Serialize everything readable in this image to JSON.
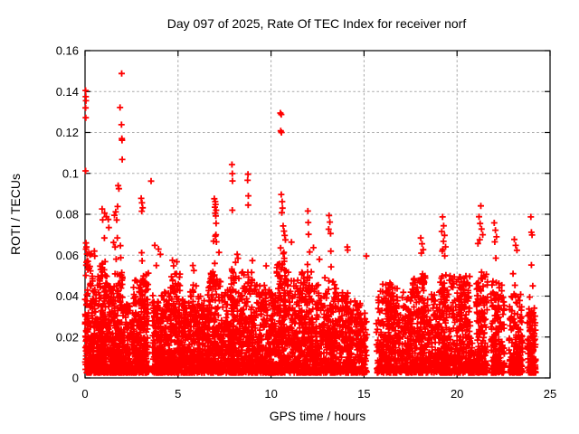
{
  "page": {
    "background": "#ffffff"
  },
  "chart_data": {
    "type": "scatter",
    "title": "Day 097 of 2025, Rate Of TEC Index for receiver norf",
    "xlabel": "GPS time / hours",
    "ylabel": "ROTI / TECUs",
    "xlim": [
      0,
      25
    ],
    "ylim": [
      0,
      0.16
    ],
    "xticks": {
      "values": [
        0,
        5,
        10,
        15,
        20,
        25
      ],
      "labels": [
        "0",
        "5",
        "10",
        "15",
        "20",
        "25"
      ]
    },
    "yticks": {
      "values": [
        0,
        0.02,
        0.04,
        0.06,
        0.08,
        0.1,
        0.12,
        0.14,
        0.16
      ],
      "labels": [
        "0",
        "0.02",
        "0.04",
        "0.06",
        "0.08",
        "0.1",
        "0.12",
        "0.14",
        "0.16"
      ]
    },
    "grid": true,
    "legend": "none",
    "marker": {
      "glyph": "plus",
      "color": "#ff0000",
      "size": 7
    },
    "grid_color": "#a9a9a9",
    "axis_color": "#000000",
    "series_name": "ROTI",
    "outlier_points": [
      [
        0.03,
        0.1405
      ],
      [
        0.04,
        0.1375
      ],
      [
        0.05,
        0.1355
      ],
      [
        0.03,
        0.132
      ],
      [
        0.04,
        0.1272
      ],
      [
        0.03,
        0.1012
      ],
      [
        0.05,
        0.066
      ],
      [
        0.08,
        0.064
      ],
      [
        0.5,
        0.062
      ],
      [
        0.52,
        0.0596
      ],
      [
        0.92,
        0.0826
      ],
      [
        1.05,
        0.0806
      ],
      [
        0.95,
        0.0773
      ],
      [
        1.15,
        0.0788
      ],
      [
        1.25,
        0.0775
      ],
      [
        1.28,
        0.0735
      ],
      [
        1.04,
        0.0684
      ],
      [
        1.53,
        0.0662
      ],
      [
        1.62,
        0.064
      ],
      [
        1.58,
        0.0795
      ],
      [
        1.65,
        0.0812
      ],
      [
        1.7,
        0.0772
      ],
      [
        1.75,
        0.0838
      ],
      [
        1.97,
        0.1488
      ],
      [
        1.88,
        0.1322
      ],
      [
        1.96,
        0.1238
      ],
      [
        1.98,
        0.117
      ],
      [
        1.99,
        0.1162
      ],
      [
        2.0,
        0.1068
      ],
      [
        1.78,
        0.094
      ],
      [
        1.82,
        0.0925
      ],
      [
        3.02,
        0.0878
      ],
      [
        3.06,
        0.0856
      ],
      [
        3.1,
        0.0832
      ],
      [
        3.05,
        0.0815
      ],
      [
        3.55,
        0.0962
      ],
      [
        3.75,
        0.0648
      ],
      [
        3.95,
        0.063
      ],
      [
        4.05,
        0.0604
      ],
      [
        4.7,
        0.0575
      ],
      [
        4.76,
        0.0548
      ],
      [
        5.1,
        0.0508
      ],
      [
        5.8,
        0.055
      ],
      [
        5.85,
        0.0525
      ],
      [
        6.95,
        0.0876
      ],
      [
        7.0,
        0.0862
      ],
      [
        7.02,
        0.0848
      ],
      [
        6.98,
        0.0835
      ],
      [
        7.05,
        0.082
      ],
      [
        7.0,
        0.0806
      ],
      [
        7.03,
        0.0792
      ],
      [
        7.05,
        0.0756
      ],
      [
        7.04,
        0.07
      ],
      [
        7.06,
        0.0665
      ],
      [
        7.9,
        0.1043
      ],
      [
        7.92,
        0.0999
      ],
      [
        7.93,
        0.0963
      ],
      [
        7.92,
        0.082
      ],
      [
        8.18,
        0.0604
      ],
      [
        8.22,
        0.0585
      ],
      [
        8.76,
        0.0996
      ],
      [
        8.74,
        0.0966
      ],
      [
        8.78,
        0.089
      ],
      [
        8.77,
        0.0845
      ],
      [
        10.5,
        0.1295
      ],
      [
        10.55,
        0.1288
      ],
      [
        10.52,
        0.1208
      ],
      [
        10.56,
        0.12
      ],
      [
        10.55,
        0.0897
      ],
      [
        10.6,
        0.0862
      ],
      [
        10.62,
        0.083
      ],
      [
        10.58,
        0.0808
      ],
      [
        10.65,
        0.0743
      ],
      [
        11.1,
        0.0664
      ],
      [
        11.98,
        0.0816
      ],
      [
        12.0,
        0.076
      ],
      [
        12.02,
        0.0702
      ],
      [
        12.28,
        0.0637
      ],
      [
        12.6,
        0.058
      ],
      [
        13.12,
        0.0794
      ],
      [
        13.16,
        0.0762
      ],
      [
        13.1,
        0.0727
      ],
      [
        13.2,
        0.0706
      ],
      [
        14.1,
        0.064
      ],
      [
        14.12,
        0.0625
      ],
      [
        15.12,
        0.0596
      ],
      [
        18.05,
        0.0684
      ],
      [
        18.12,
        0.0656
      ],
      [
        18.18,
        0.0627
      ],
      [
        18.08,
        0.061
      ],
      [
        19.22,
        0.0787
      ],
      [
        19.28,
        0.0744
      ],
      [
        19.18,
        0.0716
      ],
      [
        19.33,
        0.0697
      ],
      [
        19.27,
        0.0668
      ],
      [
        19.38,
        0.0641
      ],
      [
        21.28,
        0.0841
      ],
      [
        21.18,
        0.0788
      ],
      [
        21.24,
        0.0755
      ],
      [
        21.32,
        0.0728
      ],
      [
        21.38,
        0.07
      ],
      [
        21.22,
        0.0676
      ],
      [
        22.0,
        0.0758
      ],
      [
        22.06,
        0.0722
      ],
      [
        22.12,
        0.069
      ],
      [
        22.03,
        0.0665
      ],
      [
        23.08,
        0.0677
      ],
      [
        23.15,
        0.0648
      ],
      [
        23.22,
        0.0624
      ],
      [
        23.97,
        0.0787
      ],
      [
        24.0,
        0.0712
      ],
      [
        24.03,
        0.0699
      ],
      [
        24.0,
        0.0552
      ]
    ],
    "dense_band": {
      "description": "Dense low-ROTI band hugging y=0.003-0.03 with fuzzy tops; segments are [x_start, x_end, point_count, y_top_of_fuzz]",
      "seed": 20250407,
      "y_floor": 0.0025,
      "power": 1.8,
      "segments": [
        [
          0.0,
          0.35,
          130,
          0.063
        ],
        [
          0.35,
          0.8,
          150,
          0.05
        ],
        [
          0.8,
          1.15,
          120,
          0.056
        ],
        [
          1.15,
          1.6,
          130,
          0.046
        ],
        [
          1.6,
          2.05,
          150,
          0.052
        ],
        [
          2.05,
          2.6,
          130,
          0.036
        ],
        [
          2.6,
          3.05,
          140,
          0.048
        ],
        [
          3.05,
          3.42,
          110,
          0.052
        ],
        [
          3.62,
          4.1,
          110,
          0.042
        ],
        [
          4.1,
          4.6,
          140,
          0.042
        ],
        [
          4.6,
          5.1,
          150,
          0.05
        ],
        [
          5.1,
          5.55,
          110,
          0.038
        ],
        [
          5.55,
          6.1,
          140,
          0.046
        ],
        [
          6.1,
          6.6,
          130,
          0.04
        ],
        [
          6.6,
          7.3,
          170,
          0.052
        ],
        [
          7.3,
          7.85,
          140,
          0.044
        ],
        [
          7.85,
          8.4,
          150,
          0.05
        ],
        [
          8.4,
          9.05,
          160,
          0.052
        ],
        [
          9.05,
          9.7,
          150,
          0.046
        ],
        [
          9.7,
          10.3,
          150,
          0.044
        ],
        [
          10.3,
          10.95,
          160,
          0.056
        ],
        [
          10.95,
          11.55,
          150,
          0.048
        ],
        [
          11.55,
          12.2,
          160,
          0.052
        ],
        [
          12.2,
          12.85,
          150,
          0.046
        ],
        [
          12.85,
          13.5,
          150,
          0.05
        ],
        [
          13.5,
          14.2,
          150,
          0.042
        ],
        [
          14.2,
          14.8,
          130,
          0.038
        ],
        [
          14.8,
          15.17,
          70,
          0.032
        ],
        [
          15.65,
          16.3,
          130,
          0.047
        ],
        [
          16.3,
          16.9,
          140,
          0.046
        ],
        [
          16.9,
          17.6,
          150,
          0.042
        ],
        [
          17.6,
          18.35,
          160,
          0.05
        ],
        [
          18.35,
          19.05,
          150,
          0.042
        ],
        [
          19.05,
          19.55,
          130,
          0.052
        ],
        [
          19.55,
          20.2,
          150,
          0.05
        ],
        [
          20.2,
          20.7,
          130,
          0.05
        ],
        [
          20.7,
          21.0,
          40,
          0.014
        ],
        [
          21.0,
          21.64,
          150,
          0.052
        ],
        [
          21.82,
          22.55,
          160,
          0.048
        ],
        [
          22.79,
          23.52,
          150,
          0.042
        ],
        [
          23.77,
          24.25,
          110,
          0.036
        ],
        [
          0.85,
          1.3,
          25,
          0.068
        ],
        [
          1.5,
          2.0,
          30,
          0.07
        ],
        [
          3.0,
          3.2,
          20,
          0.07
        ],
        [
          3.7,
          4.1,
          15,
          0.06
        ],
        [
          4.6,
          5.25,
          20,
          0.058
        ],
        [
          6.85,
          7.25,
          30,
          0.072
        ],
        [
          7.85,
          8.1,
          20,
          0.06
        ],
        [
          8.65,
          9.0,
          25,
          0.062
        ],
        [
          9.55,
          9.75,
          15,
          0.058
        ],
        [
          10.45,
          10.8,
          30,
          0.072
        ],
        [
          11.9,
          12.1,
          20,
          0.062
        ],
        [
          13.05,
          13.3,
          20,
          0.062
        ],
        [
          14.0,
          14.2,
          15,
          0.055
        ],
        [
          16.2,
          16.6,
          20,
          0.052
        ],
        [
          18.0,
          18.3,
          20,
          0.058
        ],
        [
          19.15,
          19.45,
          25,
          0.064
        ],
        [
          20.55,
          20.85,
          15,
          0.056
        ],
        [
          21.1,
          21.5,
          25,
          0.066
        ],
        [
          21.95,
          22.3,
          20,
          0.06
        ],
        [
          23.0,
          23.4,
          15,
          0.055
        ],
        [
          23.9,
          24.1,
          15,
          0.05
        ]
      ],
      "gaps": [
        [
          3.42,
          3.62
        ],
        [
          15.17,
          15.65
        ],
        [
          21.64,
          21.82
        ],
        [
          22.55,
          22.79
        ],
        [
          23.52,
          23.77
        ],
        [
          24.25,
          25.0
        ]
      ]
    }
  }
}
